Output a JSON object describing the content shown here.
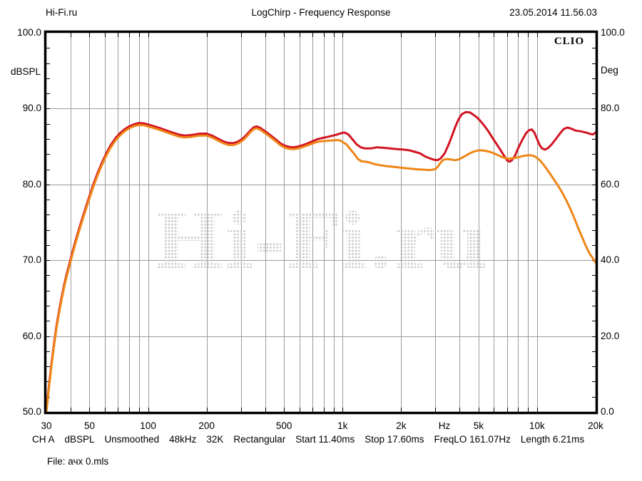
{
  "header": {
    "site": "Hi-Fi.ru",
    "title": "LogChirp - Frequency Response",
    "datetime": "23.05.2014 11.56.03"
  },
  "chart_data": {
    "type": "line",
    "title": "LogChirp - Frequency Response",
    "brand": "CLIO",
    "watermark": "Hi-Fi.ru",
    "grid": true,
    "x_axis": {
      "scale": "log",
      "unit": "Hz",
      "min": 30,
      "max": 20000,
      "ticks": [
        {
          "f": 30,
          "label": "30"
        },
        {
          "f": 50,
          "label": "50"
        },
        {
          "f": 100,
          "label": "100"
        },
        {
          "f": 200,
          "label": "200"
        },
        {
          "f": 500,
          "label": "500"
        },
        {
          "f": 1000,
          "label": "1k"
        },
        {
          "f": 2000,
          "label": "2k"
        },
        {
          "f": 3340,
          "label": "Hz"
        },
        {
          "f": 5000,
          "label": "5k"
        },
        {
          "f": 10000,
          "label": "10k"
        },
        {
          "f": 20000,
          "label": "20k"
        }
      ]
    },
    "y_left": {
      "label": "dBSPL",
      "min": 50,
      "max": 100,
      "ticks": [
        {
          "v": 100,
          "label": "100.0"
        },
        {
          "v": 90,
          "label": "90.0"
        },
        {
          "v": 80,
          "label": "80.0"
        },
        {
          "v": 70,
          "label": "70.0"
        },
        {
          "v": 60,
          "label": "60.0"
        },
        {
          "v": 50,
          "label": "50.0"
        }
      ]
    },
    "y_right": {
      "label": "Deg",
      "min": 0,
      "max": 100,
      "ticks": [
        {
          "deg": 100,
          "label": "100.0"
        },
        {
          "deg": 80,
          "label": "80.0"
        },
        {
          "deg": 60,
          "label": "60.0"
        },
        {
          "deg": 40,
          "label": "40.0"
        },
        {
          "deg": 20,
          "label": "20.0"
        },
        {
          "deg": 0,
          "label": "0.0"
        }
      ]
    },
    "series": [
      {
        "name": "response-red",
        "color": "#d31422",
        "points": [
          [
            30,
            50.3
          ],
          [
            31,
            53.7
          ],
          [
            32,
            56.7
          ],
          [
            33,
            59.4
          ],
          [
            34,
            61.7
          ],
          [
            35,
            63.6
          ],
          [
            36,
            65.2
          ],
          [
            37,
            66.7
          ],
          [
            38,
            68
          ],
          [
            40,
            70.2
          ],
          [
            42,
            72.2
          ],
          [
            44,
            74
          ],
          [
            46,
            75.6
          ],
          [
            48,
            77.1
          ],
          [
            50,
            78.5
          ],
          [
            52,
            79.8
          ],
          [
            55,
            81.5
          ],
          [
            58,
            82.9
          ],
          [
            61,
            84.1
          ],
          [
            64,
            85.1
          ],
          [
            68,
            86.1
          ],
          [
            72,
            86.8
          ],
          [
            76,
            87.3
          ],
          [
            80,
            87.65
          ],
          [
            85,
            87.95
          ],
          [
            90,
            88.1
          ],
          [
            95,
            88.05
          ],
          [
            100,
            87.9
          ],
          [
            108,
            87.65
          ],
          [
            116,
            87.4
          ],
          [
            125,
            87.1
          ],
          [
            135,
            86.8
          ],
          [
            145,
            86.55
          ],
          [
            155,
            86.45
          ],
          [
            165,
            86.5
          ],
          [
            175,
            86.6
          ],
          [
            185,
            86.7
          ],
          [
            200,
            86.7
          ],
          [
            215,
            86.4
          ],
          [
            230,
            86
          ],
          [
            245,
            85.65
          ],
          [
            260,
            85.45
          ],
          [
            275,
            85.45
          ],
          [
            290,
            85.65
          ],
          [
            305,
            86
          ],
          [
            320,
            86.5
          ],
          [
            335,
            87.1
          ],
          [
            350,
            87.55
          ],
          [
            362,
            87.65
          ],
          [
            375,
            87.5
          ],
          [
            390,
            87.2
          ],
          [
            410,
            86.8
          ],
          [
            430,
            86.4
          ],
          [
            455,
            85.9
          ],
          [
            480,
            85.4
          ],
          [
            505,
            85.1
          ],
          [
            530,
            84.95
          ],
          [
            560,
            84.9
          ],
          [
            590,
            85
          ],
          [
            620,
            85.15
          ],
          [
            660,
            85.4
          ],
          [
            700,
            85.7
          ],
          [
            740,
            85.95
          ],
          [
            780,
            86.1
          ],
          [
            830,
            86.25
          ],
          [
            880,
            86.4
          ],
          [
            930,
            86.55
          ],
          [
            980,
            86.75
          ],
          [
            1020,
            86.85
          ],
          [
            1070,
            86.6
          ],
          [
            1120,
            86
          ],
          [
            1180,
            85.3
          ],
          [
            1240,
            84.9
          ],
          [
            1300,
            84.75
          ],
          [
            1400,
            84.75
          ],
          [
            1500,
            84.9
          ],
          [
            1600,
            84.85
          ],
          [
            1750,
            84.75
          ],
          [
            1900,
            84.65
          ],
          [
            2050,
            84.6
          ],
          [
            2200,
            84.5
          ],
          [
            2350,
            84.3
          ],
          [
            2500,
            84.1
          ],
          [
            2650,
            83.7
          ],
          [
            2800,
            83.45
          ],
          [
            2950,
            83.25
          ],
          [
            3080,
            83.2
          ],
          [
            3200,
            83.45
          ],
          [
            3350,
            84.1
          ],
          [
            3500,
            85.2
          ],
          [
            3650,
            86.4
          ],
          [
            3800,
            87.6
          ],
          [
            3950,
            88.6
          ],
          [
            4100,
            89.25
          ],
          [
            4300,
            89.55
          ],
          [
            4500,
            89.5
          ],
          [
            4700,
            89.2
          ],
          [
            4900,
            88.85
          ],
          [
            5100,
            88.4
          ],
          [
            5350,
            87.75
          ],
          [
            5600,
            87.05
          ],
          [
            5900,
            86.15
          ],
          [
            6200,
            85.3
          ],
          [
            6500,
            84.5
          ],
          [
            6800,
            83.7
          ],
          [
            7000,
            83.2
          ],
          [
            7200,
            83
          ],
          [
            7400,
            83.15
          ],
          [
            7700,
            83.8
          ],
          [
            8000,
            84.8
          ],
          [
            8400,
            85.9
          ],
          [
            8800,
            86.8
          ],
          [
            9100,
            87.15
          ],
          [
            9400,
            87.25
          ],
          [
            9700,
            86.8
          ],
          [
            10000,
            86
          ],
          [
            10300,
            85.2
          ],
          [
            10600,
            84.75
          ],
          [
            11000,
            84.6
          ],
          [
            11400,
            84.8
          ],
          [
            11900,
            85.3
          ],
          [
            12500,
            86
          ],
          [
            13100,
            86.7
          ],
          [
            13700,
            87.3
          ],
          [
            14300,
            87.5
          ],
          [
            15000,
            87.35
          ],
          [
            15800,
            87.1
          ],
          [
            16800,
            87
          ],
          [
            17800,
            86.85
          ],
          [
            18800,
            86.65
          ],
          [
            19400,
            86.6
          ],
          [
            20000,
            86.85
          ]
        ]
      },
      {
        "name": "response-orange",
        "color": "#ee8618",
        "points": [
          [
            30,
            50
          ],
          [
            31,
            53.4
          ],
          [
            32,
            56.4
          ],
          [
            33,
            59.1
          ],
          [
            34,
            61.4
          ],
          [
            35,
            63.3
          ],
          [
            36,
            64.9
          ],
          [
            37,
            66.4
          ],
          [
            38,
            67.7
          ],
          [
            40,
            69.9
          ],
          [
            42,
            71.9
          ],
          [
            44,
            73.7
          ],
          [
            46,
            75.3
          ],
          [
            48,
            76.8
          ],
          [
            50,
            78.2
          ],
          [
            52,
            79.5
          ],
          [
            55,
            81.2
          ],
          [
            58,
            82.6
          ],
          [
            61,
            83.8
          ],
          [
            64,
            84.8
          ],
          [
            68,
            85.8
          ],
          [
            72,
            86.5
          ],
          [
            76,
            87.05
          ],
          [
            80,
            87.4
          ],
          [
            85,
            87.7
          ],
          [
            90,
            87.85
          ],
          [
            95,
            87.8
          ],
          [
            100,
            87.65
          ],
          [
            108,
            87.4
          ],
          [
            116,
            87.15
          ],
          [
            125,
            86.85
          ],
          [
            135,
            86.55
          ],
          [
            145,
            86.3
          ],
          [
            155,
            86.2
          ],
          [
            165,
            86.25
          ],
          [
            175,
            86.35
          ],
          [
            185,
            86.45
          ],
          [
            200,
            86.45
          ],
          [
            215,
            86.15
          ],
          [
            230,
            85.75
          ],
          [
            245,
            85.4
          ],
          [
            260,
            85.2
          ],
          [
            275,
            85.2
          ],
          [
            290,
            85.4
          ],
          [
            305,
            85.75
          ],
          [
            320,
            86.25
          ],
          [
            335,
            86.85
          ],
          [
            350,
            87.3
          ],
          [
            362,
            87.4
          ],
          [
            375,
            87.25
          ],
          [
            390,
            86.95
          ],
          [
            410,
            86.55
          ],
          [
            430,
            86.15
          ],
          [
            455,
            85.65
          ],
          [
            480,
            85.15
          ],
          [
            505,
            84.85
          ],
          [
            530,
            84.7
          ],
          [
            560,
            84.65
          ],
          [
            590,
            84.75
          ],
          [
            620,
            84.9
          ],
          [
            660,
            85.15
          ],
          [
            700,
            85.4
          ],
          [
            740,
            85.6
          ],
          [
            780,
            85.7
          ],
          [
            830,
            85.75
          ],
          [
            880,
            85.8
          ],
          [
            930,
            85.85
          ],
          [
            960,
            85.85
          ],
          [
            1000,
            85.6
          ],
          [
            1050,
            85.25
          ],
          [
            1100,
            84.6
          ],
          [
            1150,
            84
          ],
          [
            1200,
            83.35
          ],
          [
            1250,
            83.05
          ],
          [
            1300,
            83
          ],
          [
            1350,
            82.95
          ],
          [
            1450,
            82.7
          ],
          [
            1550,
            82.55
          ],
          [
            1700,
            82.4
          ],
          [
            1850,
            82.3
          ],
          [
            2000,
            82.2
          ],
          [
            2200,
            82.1
          ],
          [
            2400,
            82
          ],
          [
            2600,
            81.95
          ],
          [
            2800,
            81.9
          ],
          [
            3000,
            82
          ],
          [
            3100,
            82.4
          ],
          [
            3200,
            82.9
          ],
          [
            3300,
            83.25
          ],
          [
            3450,
            83.35
          ],
          [
            3600,
            83.3
          ],
          [
            3750,
            83.2
          ],
          [
            3900,
            83.25
          ],
          [
            4100,
            83.5
          ],
          [
            4300,
            83.8
          ],
          [
            4500,
            84.1
          ],
          [
            4700,
            84.3
          ],
          [
            4900,
            84.45
          ],
          [
            5150,
            84.5
          ],
          [
            5400,
            84.45
          ],
          [
            5700,
            84.3
          ],
          [
            6000,
            84.1
          ],
          [
            6300,
            83.85
          ],
          [
            6600,
            83.6
          ],
          [
            6900,
            83.45
          ],
          [
            7200,
            83.4
          ],
          [
            7500,
            83.45
          ],
          [
            7900,
            83.55
          ],
          [
            8300,
            83.7
          ],
          [
            8700,
            83.8
          ],
          [
            9100,
            83.85
          ],
          [
            9500,
            83.8
          ],
          [
            9800,
            83.65
          ],
          [
            10100,
            83.4
          ],
          [
            10400,
            83.1
          ],
          [
            10800,
            82.6
          ],
          [
            11200,
            82.05
          ],
          [
            11700,
            81.35
          ],
          [
            12200,
            80.65
          ],
          [
            12800,
            79.85
          ],
          [
            13400,
            79
          ],
          [
            14000,
            78.1
          ],
          [
            14700,
            77
          ],
          [
            15400,
            75.8
          ],
          [
            16200,
            74.4
          ],
          [
            17000,
            73.1
          ],
          [
            17800,
            71.9
          ],
          [
            18600,
            70.9
          ],
          [
            19300,
            70.3
          ],
          [
            20000,
            69.7
          ]
        ]
      }
    ],
    "colors": {
      "grid": "#9b9b9b",
      "frame": "#000000",
      "watermark_dots": "#c9c9c9"
    }
  },
  "status_bar": {
    "items": [
      "CH A",
      "dBSPL",
      "Unsmoothed",
      "48kHz",
      "32K",
      "Rectangular",
      "Start 11.40ms",
      "Stop 17.60ms",
      "FreqLO 161.07Hz",
      "Length 6.21ms"
    ]
  },
  "file_label": "File: ачх 0.mls"
}
